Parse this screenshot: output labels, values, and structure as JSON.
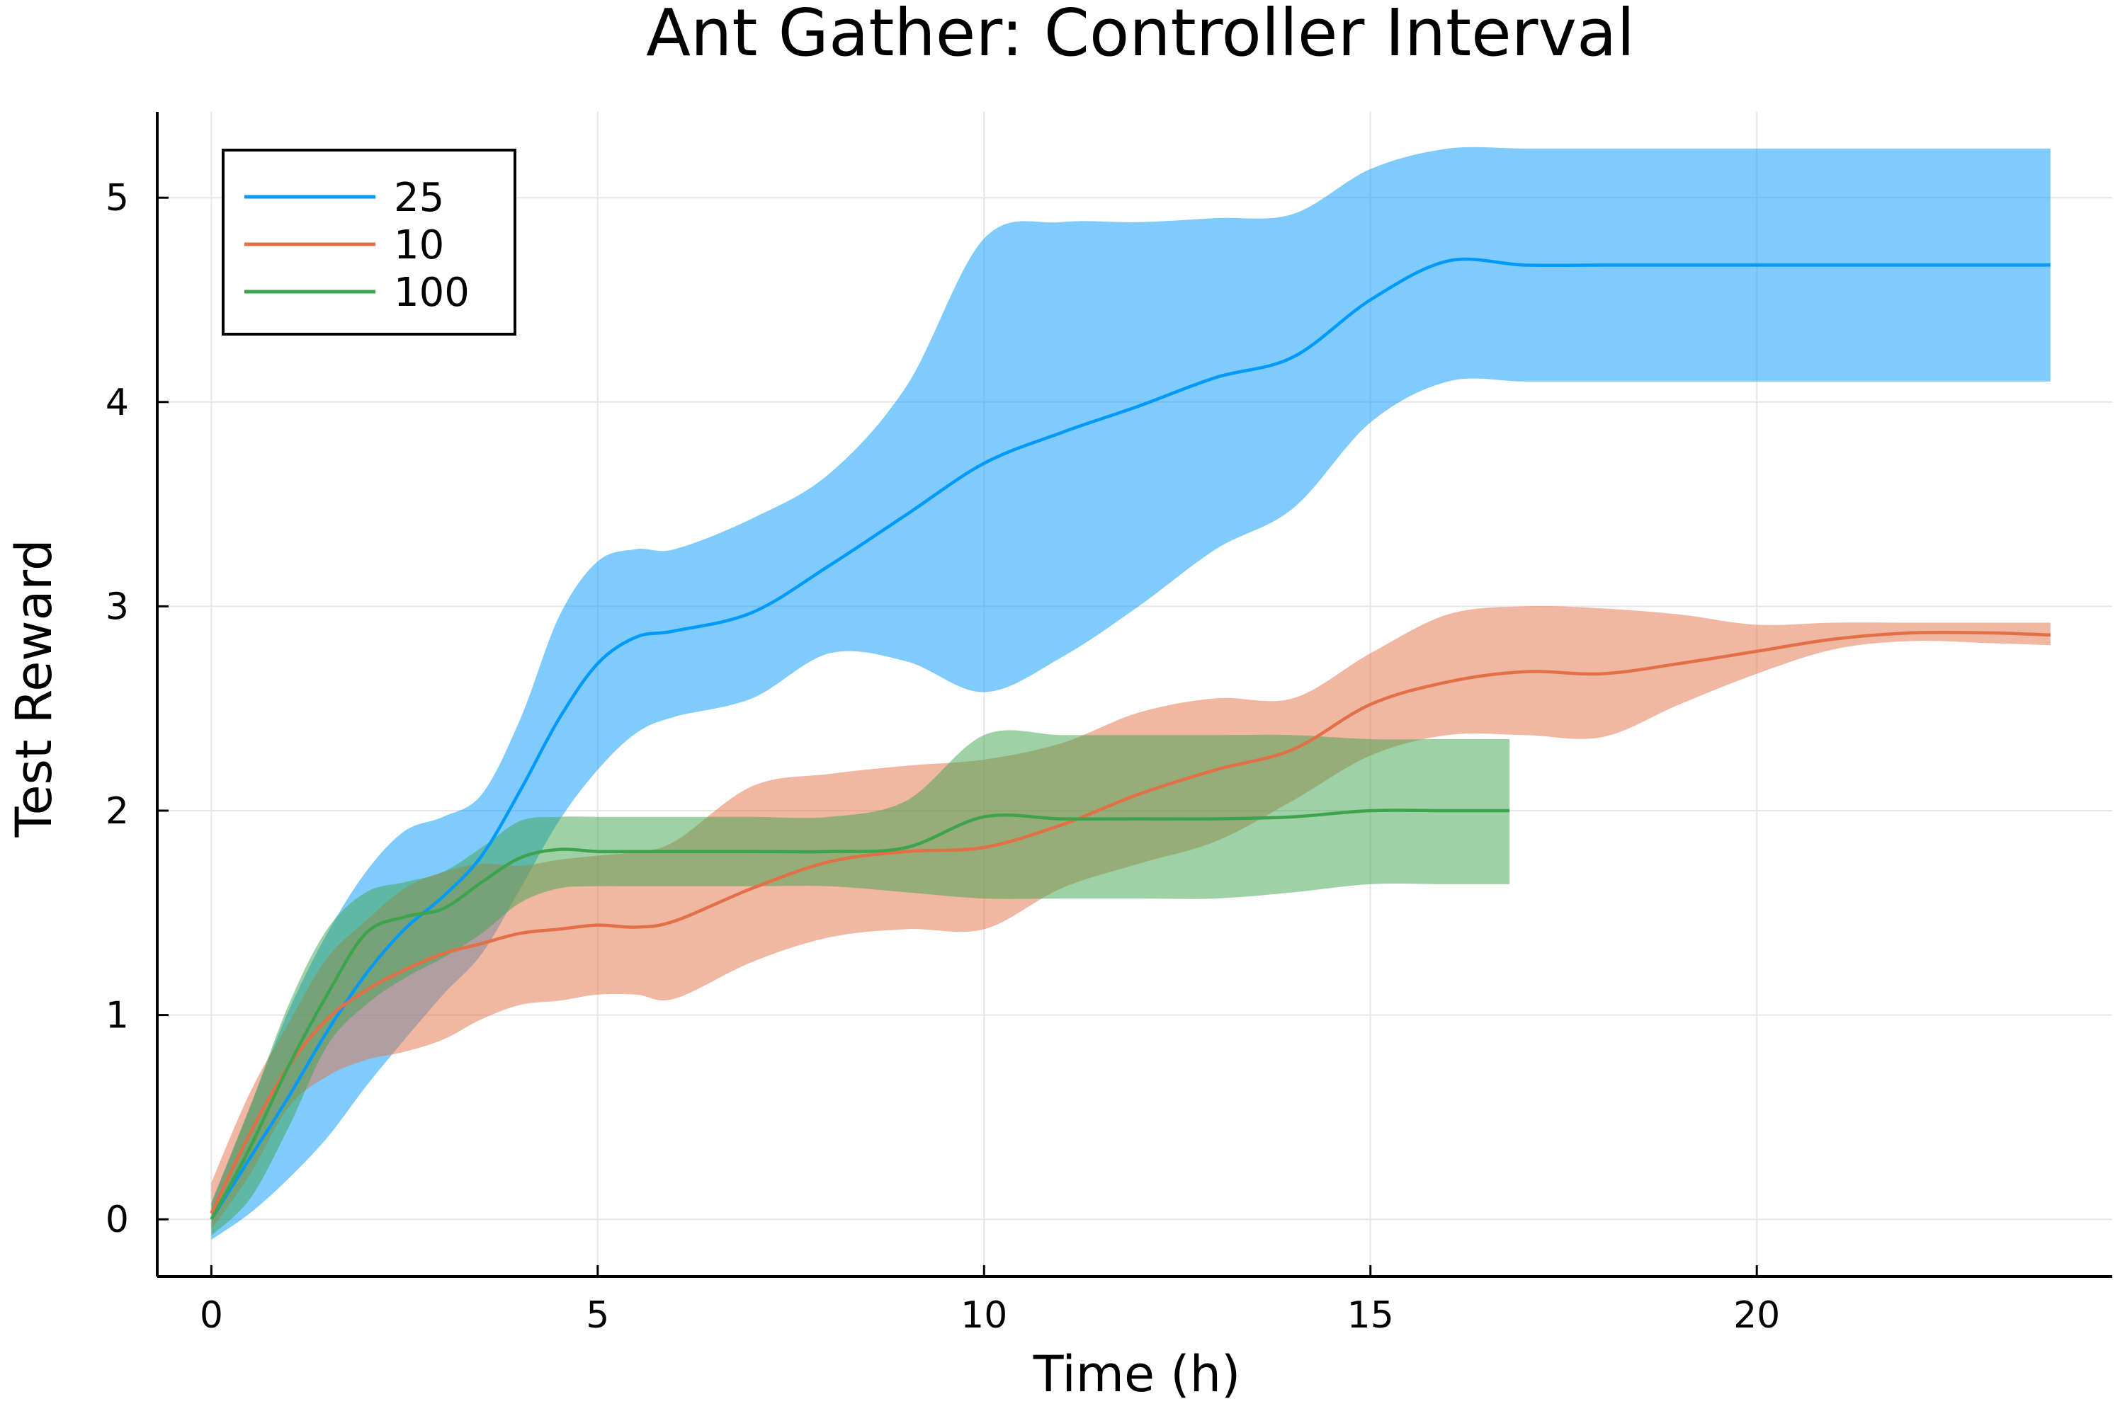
{
  "chart_data": {
    "type": "line",
    "title": "Ant Gather: Controller Interval",
    "xlabel": "Time (h)",
    "ylabel": "Test Reward",
    "xlim": [
      -0.7,
      24.6
    ],
    "ylim": [
      -0.28,
      5.42
    ],
    "xticks": [
      0,
      5,
      10,
      15,
      20
    ],
    "yticks": [
      0,
      1,
      2,
      3,
      4,
      5
    ],
    "grid": true,
    "legend_position": "top-left",
    "series": [
      {
        "name": "25",
        "color": "#009AFA",
        "x": [
          0,
          0.5,
          1,
          1.5,
          2,
          2.5,
          3,
          3.5,
          4,
          4.5,
          5,
          5.5,
          6,
          7,
          8,
          9,
          10,
          11,
          12,
          13,
          14,
          15,
          16,
          17,
          18,
          19,
          20,
          21,
          22,
          23,
          23.8
        ],
        "y": [
          0.0,
          0.3,
          0.6,
          0.92,
          1.2,
          1.42,
          1.58,
          1.78,
          2.1,
          2.45,
          2.72,
          2.85,
          2.88,
          2.97,
          3.2,
          3.45,
          3.7,
          3.85,
          3.98,
          4.12,
          4.22,
          4.5,
          4.69,
          4.67,
          4.67,
          4.67,
          4.67,
          4.67,
          4.67,
          4.67,
          4.67
        ],
        "lower": [
          -0.1,
          0.03,
          0.2,
          0.4,
          0.65,
          0.88,
          1.1,
          1.3,
          1.62,
          1.95,
          2.2,
          2.38,
          2.46,
          2.55,
          2.77,
          2.73,
          2.58,
          2.75,
          3.0,
          3.28,
          3.48,
          3.9,
          4.1,
          4.1,
          4.1,
          4.1,
          4.1,
          4.1,
          4.1,
          4.1,
          4.1
        ],
        "upper": [
          0.08,
          0.55,
          1.02,
          1.4,
          1.7,
          1.9,
          1.97,
          2.08,
          2.45,
          2.95,
          3.22,
          3.28,
          3.28,
          3.43,
          3.65,
          4.08,
          4.8,
          4.88,
          4.88,
          4.9,
          4.92,
          5.14,
          5.24,
          5.24,
          5.24,
          5.24,
          5.24,
          5.24,
          5.24,
          5.24,
          5.24
        ]
      },
      {
        "name": "10",
        "color": "#E26F46",
        "x": [
          0,
          0.5,
          1,
          1.5,
          2,
          2.5,
          3,
          3.5,
          4,
          4.5,
          5,
          5.5,
          6,
          7,
          8,
          9,
          10,
          11,
          12,
          13,
          14,
          15,
          16,
          17,
          18,
          19,
          20,
          21,
          22,
          23,
          23.8
        ],
        "y": [
          0.03,
          0.42,
          0.75,
          0.98,
          1.12,
          1.22,
          1.3,
          1.35,
          1.4,
          1.42,
          1.44,
          1.43,
          1.46,
          1.62,
          1.75,
          1.8,
          1.82,
          1.93,
          2.08,
          2.2,
          2.3,
          2.52,
          2.63,
          2.68,
          2.67,
          2.72,
          2.78,
          2.84,
          2.87,
          2.87,
          2.86
        ],
        "lower": [
          -0.05,
          0.22,
          0.55,
          0.7,
          0.78,
          0.82,
          0.88,
          0.98,
          1.05,
          1.07,
          1.1,
          1.1,
          1.08,
          1.26,
          1.38,
          1.42,
          1.42,
          1.62,
          1.74,
          1.85,
          2.05,
          2.27,
          2.37,
          2.37,
          2.36,
          2.52,
          2.67,
          2.79,
          2.83,
          2.82,
          2.81
        ],
        "upper": [
          0.18,
          0.62,
          0.96,
          1.28,
          1.46,
          1.62,
          1.7,
          1.74,
          1.73,
          1.76,
          1.78,
          1.8,
          1.85,
          2.12,
          2.18,
          2.22,
          2.25,
          2.33,
          2.48,
          2.55,
          2.55,
          2.77,
          2.96,
          3.0,
          2.99,
          2.96,
          2.91,
          2.92,
          2.92,
          2.92,
          2.92
        ]
      },
      {
        "name": "100",
        "color": "#3DA44D",
        "x": [
          0,
          0.5,
          1,
          1.5,
          2,
          2.5,
          3,
          3.5,
          4,
          4.5,
          5,
          5.5,
          6,
          7,
          8,
          9,
          10,
          11,
          12,
          13,
          14,
          15,
          16,
          16.8
        ],
        "y": [
          0.0,
          0.35,
          0.75,
          1.1,
          1.4,
          1.48,
          1.52,
          1.65,
          1.77,
          1.81,
          1.8,
          1.8,
          1.8,
          1.8,
          1.8,
          1.82,
          1.97,
          1.96,
          1.96,
          1.96,
          1.97,
          2.0,
          2.0,
          2.0
        ],
        "lower": [
          -0.08,
          0.1,
          0.45,
          0.85,
          1.05,
          1.18,
          1.28,
          1.4,
          1.55,
          1.62,
          1.63,
          1.63,
          1.63,
          1.63,
          1.63,
          1.6,
          1.57,
          1.57,
          1.57,
          1.57,
          1.6,
          1.64,
          1.64,
          1.64
        ],
        "upper": [
          0.08,
          0.55,
          1.05,
          1.42,
          1.6,
          1.65,
          1.7,
          1.82,
          1.95,
          1.97,
          1.97,
          1.97,
          1.97,
          1.97,
          1.97,
          2.05,
          2.37,
          2.37,
          2.37,
          2.37,
          2.37,
          2.35,
          2.35,
          2.35
        ]
      }
    ]
  }
}
